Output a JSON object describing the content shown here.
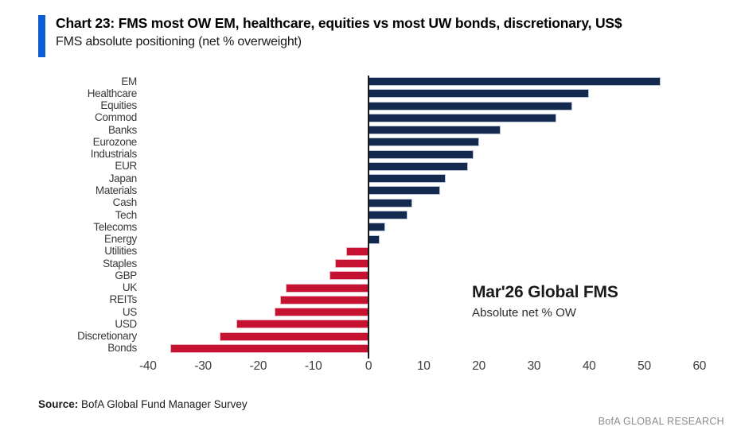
{
  "header": {
    "title": "Chart 23: FMS most OW EM, healthcare, equities vs most UW bonds, discretionary, US$",
    "subtitle": "FMS absolute positioning (net % overweight)",
    "accent_color": "#0b5cd5"
  },
  "chart_data": {
    "type": "bar",
    "orientation": "horizontal",
    "title": "FMS absolute positioning (net % overweight)",
    "categories": [
      "EM",
      "Healthcare",
      "Equities",
      "Commod",
      "Banks",
      "Eurozone",
      "Industrials",
      "EUR",
      "Japan",
      "Materials",
      "Cash",
      "Tech",
      "Telecoms",
      "Energy",
      "Utilities",
      "Staples",
      "GBP",
      "UK",
      "REITs",
      "US",
      "USD",
      "Discretionary",
      "Bonds"
    ],
    "values": [
      53,
      40,
      37,
      34,
      24,
      20,
      19,
      18,
      14,
      13,
      8,
      7,
      3,
      2,
      -4,
      -6,
      -7,
      -15,
      -16,
      -17,
      -24,
      -27,
      -36
    ],
    "xlabel": "",
    "ylabel": "",
    "xlim": [
      -40,
      60
    ],
    "x_ticks": [
      -40,
      -30,
      -20,
      -10,
      0,
      10,
      20,
      30,
      40,
      50,
      60
    ],
    "grid": false,
    "legend_position": "none",
    "positive_color": "#14294e",
    "positive_border": "#b9c4d6",
    "negative_color": "#c51230",
    "negative_border": "#eab0bb",
    "annotation": {
      "line1": "Mar'26 Global FMS",
      "line2": "Absolute net % OW"
    }
  },
  "footer": {
    "source_label": "Source:",
    "source_text": " BofA Global Fund Manager Survey",
    "brand": "BofA GLOBAL RESEARCH"
  }
}
